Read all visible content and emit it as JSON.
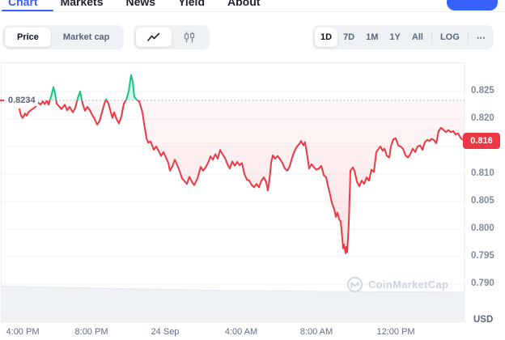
{
  "nav": {
    "tabs": [
      {
        "label": "Chart",
        "active": true
      },
      {
        "label": "Markets",
        "active": false
      },
      {
        "label": "News",
        "active": false
      },
      {
        "label": "Yield",
        "active": false
      },
      {
        "label": "About",
        "active": false
      }
    ]
  },
  "metric_toggle": {
    "options": [
      {
        "label": "Price",
        "active": true
      },
      {
        "label": "Market cap",
        "active": false
      }
    ]
  },
  "chart_type_toggle": {
    "options": [
      {
        "icon": "line-chart-icon",
        "active": true
      },
      {
        "icon": "candlestick-icon",
        "active": false
      }
    ]
  },
  "range_toggle": {
    "options": [
      {
        "label": "1D",
        "active": true,
        "divider_before": false
      },
      {
        "label": "7D",
        "active": false,
        "divider_before": false
      },
      {
        "label": "1M",
        "active": false,
        "divider_before": false
      },
      {
        "label": "1Y",
        "active": false,
        "divider_before": false
      },
      {
        "label": "All",
        "active": false,
        "divider_before": false
      },
      {
        "label": "LOG",
        "active": false,
        "divider_before": true
      },
      {
        "label": "⋯",
        "active": false,
        "divider_before": true
      }
    ]
  },
  "watermark": {
    "icon": "coinmarketcap-logo",
    "text": "CoinMarketCap"
  },
  "colors": {
    "accent_blue": "#3861fb",
    "up_green": "#16c784",
    "down_red": "#ea3943",
    "grid": "#f0f3f6",
    "axis_text": "#808a9d"
  },
  "chart_data": {
    "type": "line",
    "title": "",
    "baseline": {
      "value": 0.8234,
      "label": "0.8234",
      "style": "dotted"
    },
    "last_price": {
      "value": 0.816,
      "label": "0.816",
      "badge_color": "#ea3943"
    },
    "y_axis": {
      "side": "right",
      "unit_label": "USD",
      "ylim": [
        0.7831,
        0.8303
      ],
      "tick_labels": [
        "0.825",
        "0.820",
        "0.810",
        "0.805",
        "0.800",
        "0.795",
        "0.790"
      ],
      "tick_values": [
        0.825,
        0.82,
        0.81,
        0.805,
        0.8,
        0.795,
        0.79
      ],
      "grid_values": [
        0.825,
        0.82,
        0.815,
        0.81,
        0.805,
        0.8,
        0.795,
        0.79,
        0.785
      ],
      "grid": true
    },
    "x_axis": {
      "tick_labels": [
        "4:00 PM",
        "8:00 PM",
        "24 Sep",
        "4:00 AM",
        "8:00 AM",
        "12:00 PM"
      ]
    },
    "series": [
      {
        "name": "price",
        "color_above_baseline": "#16c784",
        "color_below_baseline": "#ea3943",
        "points": [
          [
            24,
            0.8218
          ],
          [
            26,
            0.8206
          ],
          [
            28,
            0.8202
          ],
          [
            31,
            0.821
          ],
          [
            33,
            0.8206
          ],
          [
            35,
            0.8212
          ],
          [
            38,
            0.8216
          ],
          [
            42,
            0.822
          ],
          [
            45,
            0.8224
          ],
          [
            47,
            0.823
          ],
          [
            50,
            0.8226
          ],
          [
            53,
            0.8232
          ],
          [
            55,
            0.8227
          ],
          [
            58,
            0.8233
          ],
          [
            60,
            0.8226
          ],
          [
            63,
            0.824
          ],
          [
            66,
            0.8258
          ],
          [
            68,
            0.8247
          ],
          [
            70,
            0.8228
          ],
          [
            73,
            0.8223
          ],
          [
            76,
            0.8218
          ],
          [
            80,
            0.8226
          ],
          [
            83,
            0.8216
          ],
          [
            86,
            0.8222
          ],
          [
            90,
            0.8212
          ],
          [
            93,
            0.822
          ],
          [
            96,
            0.8238
          ],
          [
            99,
            0.825
          ],
          [
            102,
            0.8228
          ],
          [
            105,
            0.8215
          ],
          [
            108,
            0.8222
          ],
          [
            111,
            0.8216
          ],
          [
            114,
            0.8207
          ],
          [
            117,
            0.82
          ],
          [
            120,
            0.819
          ],
          [
            123,
            0.8196
          ],
          [
            126,
            0.8212
          ],
          [
            129,
            0.8228
          ],
          [
            131,
            0.8236
          ],
          [
            134,
            0.8228
          ],
          [
            137,
            0.8212
          ],
          [
            139,
            0.8202
          ],
          [
            141,
            0.8212
          ],
          [
            144,
            0.82
          ],
          [
            147,
            0.8192
          ],
          [
            150,
            0.8205
          ],
          [
            153,
            0.8228
          ],
          [
            156,
            0.8235
          ],
          [
            159,
            0.825
          ],
          [
            162,
            0.828
          ],
          [
            164,
            0.8268
          ],
          [
            166,
            0.824
          ],
          [
            169,
            0.8235
          ],
          [
            172,
            0.8232
          ],
          [
            174,
            0.8222
          ],
          [
            176,
            0.8212
          ],
          [
            178,
            0.8192
          ],
          [
            181,
            0.8165
          ],
          [
            183,
            0.8157
          ],
          [
            186,
            0.8159
          ],
          [
            188,
            0.8152
          ],
          [
            190,
            0.8144
          ],
          [
            193,
            0.815
          ],
          [
            196,
            0.8142
          ],
          [
            199,
            0.8133
          ],
          [
            202,
            0.814
          ],
          [
            205,
            0.813
          ],
          [
            208,
            0.812
          ],
          [
            210,
            0.8106
          ],
          [
            213,
            0.8114
          ],
          [
            216,
            0.8126
          ],
          [
            219,
            0.8116
          ],
          [
            222,
            0.8105
          ],
          [
            225,
            0.8092
          ],
          [
            228,
            0.8087
          ],
          [
            231,
            0.8082
          ],
          [
            234,
            0.8095
          ],
          [
            237,
            0.8086
          ],
          [
            240,
            0.808
          ],
          [
            244,
            0.8092
          ],
          [
            248,
            0.8113
          ],
          [
            251,
            0.8106
          ],
          [
            254,
            0.8112
          ],
          [
            257,
            0.812
          ],
          [
            260,
            0.8132
          ],
          [
            263,
            0.8126
          ],
          [
            266,
            0.8136
          ],
          [
            269,
            0.8128
          ],
          [
            272,
            0.8144
          ],
          [
            275,
            0.8136
          ],
          [
            278,
            0.8129
          ],
          [
            281,
            0.8118
          ],
          [
            284,
            0.811
          ],
          [
            287,
            0.8123
          ],
          [
            290,
            0.8115
          ],
          [
            293,
            0.8122
          ],
          [
            296,
            0.8116
          ],
          [
            299,
            0.812
          ],
          [
            302,
            0.81
          ],
          [
            305,
            0.809
          ],
          [
            308,
            0.8088
          ],
          [
            311,
            0.808
          ],
          [
            314,
            0.8076
          ],
          [
            317,
            0.8082
          ],
          [
            320,
            0.8076
          ],
          [
            323,
            0.8088
          ],
          [
            326,
            0.8094
          ],
          [
            329,
            0.8085
          ],
          [
            331,
            0.807
          ],
          [
            333,
            0.809
          ],
          [
            335,
            0.812
          ],
          [
            337,
            0.8134
          ],
          [
            340,
            0.8128
          ],
          [
            343,
            0.8133
          ],
          [
            346,
            0.8127
          ],
          [
            349,
            0.812
          ],
          [
            352,
            0.811
          ],
          [
            355,
            0.8106
          ],
          [
            358,
            0.8114
          ],
          [
            361,
            0.813
          ],
          [
            364,
            0.8142
          ],
          [
            367,
            0.815
          ],
          [
            370,
            0.8155
          ],
          [
            372,
            0.816
          ],
          [
            375,
            0.8152
          ],
          [
            377,
            0.8158
          ],
          [
            380,
            0.813
          ],
          [
            382,
            0.811
          ],
          [
            385,
            0.8118
          ],
          [
            388,
            0.8112
          ],
          [
            391,
            0.8108
          ],
          [
            394,
            0.811
          ],
          [
            397,
            0.8115
          ],
          [
            400,
            0.8098
          ],
          [
            403,
            0.8094
          ],
          [
            405,
            0.808
          ],
          [
            408,
            0.8062
          ],
          [
            410,
            0.8048
          ],
          [
            413,
            0.8036
          ],
          [
            415,
            0.8022
          ],
          [
            417,
            0.803
          ],
          [
            419,
            0.8018
          ],
          [
            421,
            0.8014
          ],
          [
            423,
            0.7982
          ],
          [
            424,
            0.7965
          ],
          [
            425,
            0.7972
          ],
          [
            427,
            0.7956
          ],
          [
            428,
            0.7968
          ],
          [
            429,
            0.7958
          ],
          [
            431,
            0.801
          ],
          [
            433,
            0.8106
          ],
          [
            436,
            0.8112
          ],
          [
            438,
            0.8106
          ],
          [
            441,
            0.8086
          ],
          [
            444,
            0.8078
          ],
          [
            447,
            0.8088
          ],
          [
            450,
            0.8082
          ],
          [
            453,
            0.8094
          ],
          [
            456,
            0.8088
          ],
          [
            459,
            0.8108
          ],
          [
            462,
            0.8104
          ],
          [
            465,
            0.814
          ],
          [
            468,
            0.8146
          ],
          [
            470,
            0.815
          ],
          [
            473,
            0.8142
          ],
          [
            475,
            0.8146
          ],
          [
            478,
            0.8133
          ],
          [
            481,
            0.813
          ],
          [
            483,
            0.815
          ],
          [
            486,
            0.8163
          ],
          [
            489,
            0.8165
          ],
          [
            492,
            0.8152
          ],
          [
            495,
            0.815
          ],
          [
            498,
            0.8146
          ],
          [
            501,
            0.8134
          ],
          [
            504,
            0.813
          ],
          [
            507,
            0.8136
          ],
          [
            510,
            0.8146
          ],
          [
            513,
            0.814
          ],
          [
            516,
            0.815
          ],
          [
            519,
            0.8152
          ],
          [
            522,
            0.8144
          ],
          [
            525,
            0.8158
          ],
          [
            528,
            0.8162
          ],
          [
            531,
            0.816
          ],
          [
            533,
            0.8164
          ],
          [
            536,
            0.8162
          ],
          [
            539,
            0.8156
          ],
          [
            542,
            0.8178
          ],
          [
            545,
            0.8184
          ],
          [
            548,
            0.818
          ],
          [
            551,
            0.8176
          ],
          [
            554,
            0.818
          ],
          [
            557,
            0.8176
          ],
          [
            560,
            0.8178
          ],
          [
            563,
            0.8172
          ],
          [
            566,
            0.8174
          ],
          [
            569,
            0.8166
          ],
          [
            572,
            0.8162
          ],
          [
            574,
            0.816
          ]
        ]
      }
    ],
    "volume_band": {
      "present": true,
      "position": "bottom"
    }
  }
}
